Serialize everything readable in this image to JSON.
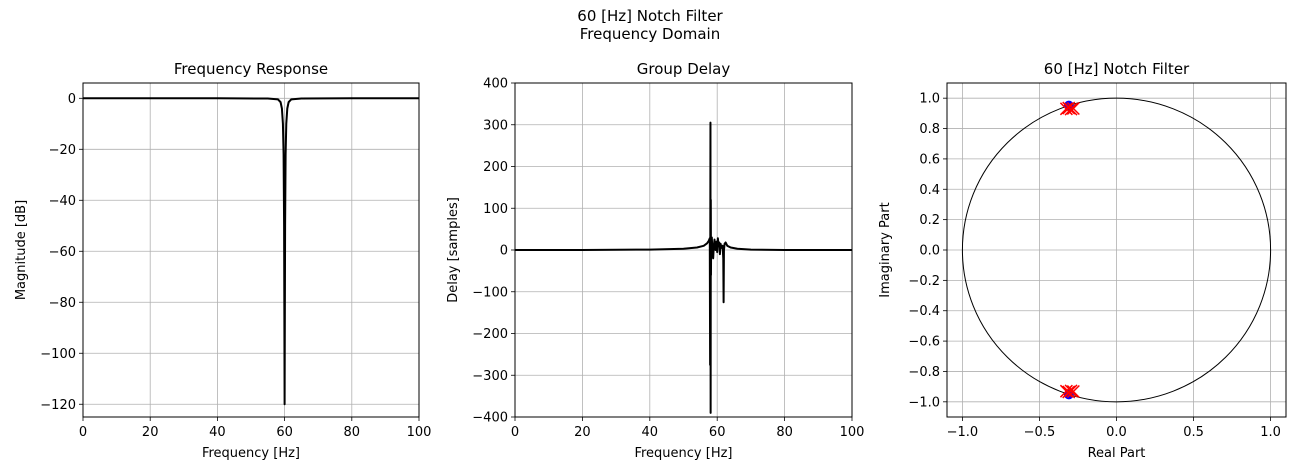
{
  "figure": {
    "suptitle_line1": "60 [Hz] Notch Filter",
    "suptitle_line2": "Frequency Domain"
  },
  "chart_data": [
    {
      "type": "line",
      "title": "Frequency Response",
      "xlabel": "Frequency [Hz]",
      "ylabel": "Magnitude [dB]",
      "xlim": [
        0,
        100
      ],
      "ylim": [
        -125,
        6
      ],
      "xticks": [
        0,
        20,
        40,
        60,
        80,
        100
      ],
      "yticks": [
        -120,
        -100,
        -80,
        -60,
        -40,
        -20,
        0
      ],
      "grid": true,
      "series": [
        {
          "color": "#000000",
          "x": [
            0,
            20,
            40,
            55,
            58,
            58.8,
            59.2,
            59.5,
            59.7,
            59.85,
            59.93,
            60.0,
            60.07,
            60.15,
            60.3,
            60.5,
            60.8,
            61.2,
            62,
            65,
            80,
            100
          ],
          "y": [
            0,
            0,
            0,
            -0.1,
            -0.4,
            -1.5,
            -4,
            -10,
            -22,
            -50,
            -85,
            -120,
            -85,
            -50,
            -22,
            -10,
            -4,
            -1.5,
            -0.4,
            -0.1,
            0,
            0
          ]
        }
      ]
    },
    {
      "type": "line",
      "title": "Group Delay",
      "xlabel": "Frequency [Hz]",
      "ylabel": "Delay [samples]",
      "xlim": [
        0,
        100
      ],
      "ylim": [
        -400,
        400
      ],
      "xticks": [
        0,
        20,
        40,
        60,
        80,
        100
      ],
      "yticks": [
        -400,
        -300,
        -200,
        -100,
        0,
        100,
        200,
        300,
        400
      ],
      "grid": true,
      "series": [
        {
          "color": "#000000",
          "x": [
            0,
            20,
            40,
            50,
            54,
            56,
            57,
            57.5,
            57.8,
            57.9,
            58.0,
            58.05,
            58.1,
            58.15,
            58.2,
            58.3,
            58.4,
            58.6,
            58.8,
            59.0,
            59.2,
            59.5,
            59.8,
            60.0,
            60.2,
            60.4,
            60.6,
            60.8,
            61.0,
            61.3,
            61.6,
            61.8,
            61.9,
            62.0,
            62.2,
            62.5,
            63.0,
            64,
            66,
            70,
            80,
            100
          ],
          "y": [
            0,
            0,
            1,
            3,
            6,
            10,
            16,
            22,
            28,
            -275,
            305,
            -390,
            120,
            -60,
            25,
            5,
            30,
            -5,
            -20,
            10,
            25,
            0,
            20,
            -5,
            28,
            10,
            18,
            -10,
            15,
            5,
            10,
            -20,
            -125,
            0,
            15,
            18,
            10,
            6,
            3,
            1,
            0,
            0
          ]
        }
      ]
    },
    {
      "type": "scatter",
      "title": "60 [Hz] Notch Filter",
      "xlabel": "Real Part",
      "ylabel": "Imaginary Part",
      "xlim": [
        -1.1,
        1.1
      ],
      "ylim": [
        -1.1,
        1.1
      ],
      "xticks": [
        -1.0,
        -0.5,
        0.0,
        0.5,
        1.0
      ],
      "xtick_labels": [
        "−1.0",
        "−0.5",
        "0.0",
        "0.5",
        "1.0"
      ],
      "yticks": [
        -1.0,
        -0.8,
        -0.6,
        -0.4,
        -0.2,
        0.0,
        0.2,
        0.4,
        0.6,
        0.8,
        1.0
      ],
      "ytick_labels": [
        "−1.0",
        "−0.8",
        "−0.6",
        "−0.4",
        "−0.2",
        "0.0",
        "0.2",
        "0.4",
        "0.6",
        "0.8",
        "1.0"
      ],
      "grid": true,
      "unit_circle": true,
      "series": [
        {
          "marker": "o",
          "color": "#0000ff",
          "x": [
            -0.309,
            -0.309
          ],
          "y": [
            0.951,
            -0.951
          ]
        },
        {
          "marker": "x",
          "color": "#ff0000",
          "x": [
            -0.325,
            -0.31,
            -0.295,
            -0.28,
            -0.325,
            -0.31,
            -0.295,
            -0.28
          ],
          "y": [
            0.93,
            0.935,
            0.928,
            0.932,
            -0.93,
            -0.935,
            -0.928,
            -0.932
          ]
        }
      ]
    }
  ]
}
